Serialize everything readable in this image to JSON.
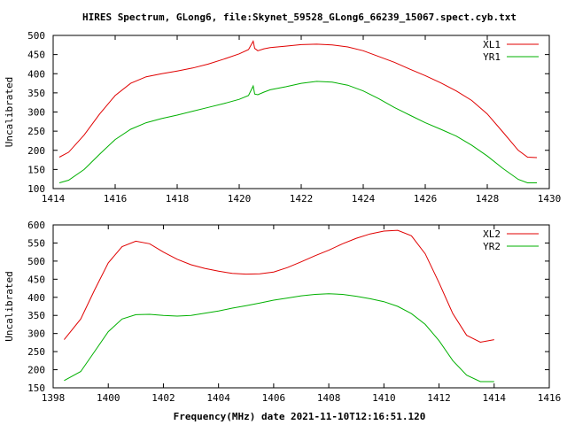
{
  "title": "HIRES Spectrum, GLong6, file:Skynet_59528_GLong6_66239_15067.spect.cyb.txt",
  "xlabel": "Frequency(MHz) date 2021-11-10T12:16:51.120",
  "chart_data": [
    {
      "type": "line",
      "ylabel": "Uncalibrated",
      "xlim": [
        1414,
        1430
      ],
      "ylim": [
        100,
        500
      ],
      "xticks": [
        1414,
        1416,
        1418,
        1420,
        1422,
        1424,
        1426,
        1428,
        1430
      ],
      "yticks": [
        100,
        150,
        200,
        250,
        300,
        350,
        400,
        450,
        500
      ],
      "legend_position": "top-right",
      "grid": false,
      "series": [
        {
          "name": "XL1",
          "color": "#e00000",
          "x": [
            1414.2,
            1414.5,
            1415.0,
            1415.5,
            1416.0,
            1416.5,
            1417.0,
            1417.5,
            1418.0,
            1418.5,
            1419.0,
            1419.5,
            1420.0,
            1420.3,
            1420.45,
            1420.5,
            1420.6,
            1420.8,
            1421.0,
            1421.5,
            1422.0,
            1422.5,
            1423.0,
            1423.5,
            1424.0,
            1424.5,
            1425.0,
            1425.5,
            1426.0,
            1426.5,
            1427.0,
            1427.5,
            1428.0,
            1428.5,
            1429.0,
            1429.3,
            1429.6
          ],
          "y": [
            182,
            195,
            240,
            295,
            343,
            375,
            392,
            400,
            407,
            415,
            425,
            438,
            452,
            463,
            485,
            466,
            460,
            465,
            468,
            472,
            476,
            477,
            475,
            470,
            460,
            445,
            430,
            412,
            395,
            376,
            355,
            330,
            295,
            248,
            200,
            182,
            181
          ]
        },
        {
          "name": "YR1",
          "color": "#00b000",
          "x": [
            1414.2,
            1414.5,
            1415.0,
            1415.5,
            1416.0,
            1416.5,
            1417.0,
            1417.5,
            1418.0,
            1418.5,
            1419.0,
            1419.5,
            1420.0,
            1420.3,
            1420.45,
            1420.5,
            1420.6,
            1420.8,
            1421.0,
            1421.5,
            1422.0,
            1422.5,
            1423.0,
            1423.5,
            1424.0,
            1424.5,
            1425.0,
            1425.5,
            1426.0,
            1426.5,
            1427.0,
            1427.5,
            1428.0,
            1428.5,
            1429.0,
            1429.3,
            1429.6
          ],
          "y": [
            115,
            122,
            150,
            190,
            228,
            255,
            272,
            283,
            292,
            302,
            312,
            322,
            333,
            343,
            368,
            347,
            345,
            352,
            358,
            366,
            375,
            380,
            378,
            370,
            355,
            335,
            312,
            292,
            272,
            255,
            237,
            213,
            185,
            153,
            124,
            115,
            115
          ]
        }
      ]
    },
    {
      "type": "line",
      "ylabel": "Uncalibrated",
      "xlim": [
        1398,
        1416
      ],
      "ylim": [
        150,
        600
      ],
      "xticks": [
        1398,
        1400,
        1402,
        1404,
        1406,
        1408,
        1410,
        1412,
        1414,
        1416
      ],
      "yticks": [
        150,
        200,
        250,
        300,
        350,
        400,
        450,
        500,
        550,
        600
      ],
      "legend_position": "top-right",
      "grid": false,
      "series": [
        {
          "name": "XL2",
          "color": "#e00000",
          "x": [
            1398.4,
            1399.0,
            1399.5,
            1400.0,
            1400.5,
            1401.0,
            1401.5,
            1402.0,
            1402.5,
            1403.0,
            1403.5,
            1404.0,
            1404.5,
            1405.0,
            1405.5,
            1406.0,
            1406.5,
            1407.0,
            1407.5,
            1408.0,
            1408.5,
            1409.0,
            1409.5,
            1410.0,
            1410.5,
            1411.0,
            1411.5,
            1412.0,
            1412.5,
            1413.0,
            1413.5,
            1414.0
          ],
          "y": [
            283,
            340,
            420,
            495,
            540,
            555,
            548,
            525,
            505,
            490,
            480,
            472,
            466,
            464,
            465,
            470,
            482,
            498,
            515,
            530,
            548,
            563,
            575,
            583,
            585,
            570,
            520,
            440,
            355,
            295,
            276,
            283
          ]
        },
        {
          "name": "YR2",
          "color": "#00b000",
          "x": [
            1398.4,
            1399.0,
            1399.5,
            1400.0,
            1400.5,
            1401.0,
            1401.5,
            1402.0,
            1402.5,
            1403.0,
            1403.5,
            1404.0,
            1404.5,
            1405.0,
            1405.5,
            1406.0,
            1406.5,
            1407.0,
            1407.5,
            1408.0,
            1408.5,
            1409.0,
            1409.5,
            1410.0,
            1410.5,
            1411.0,
            1411.5,
            1412.0,
            1412.5,
            1413.0,
            1413.5,
            1414.0
          ],
          "y": [
            170,
            195,
            250,
            305,
            340,
            352,
            353,
            350,
            348,
            350,
            356,
            362,
            370,
            377,
            384,
            392,
            398,
            404,
            408,
            410,
            408,
            403,
            396,
            388,
            375,
            355,
            325,
            280,
            225,
            185,
            167,
            167
          ]
        }
      ]
    }
  ]
}
